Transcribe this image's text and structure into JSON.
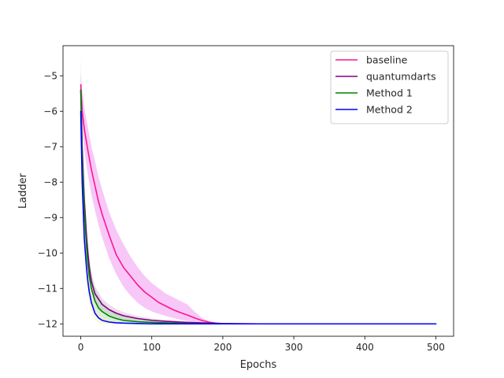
{
  "chart_data": {
    "type": "line",
    "title": "",
    "xlabel": "Epochs",
    "ylabel": "Ladder",
    "xlim": [
      -25,
      525
    ],
    "ylim": [
      -12.35,
      -4.15
    ],
    "xticks": [
      0,
      100,
      200,
      300,
      400,
      500
    ],
    "yticks": [
      -12,
      -11,
      -10,
      -9,
      -8,
      -7,
      -6,
      -5
    ],
    "xtick_labels": [
      "0",
      "100",
      "200",
      "300",
      "400",
      "500"
    ],
    "ytick_labels": [
      "−12",
      "−11",
      "−10",
      "−9",
      "−8",
      "−7",
      "−6",
      "−5"
    ],
    "grid": false,
    "legend_position": "top-right",
    "series": [
      {
        "name": "baseline",
        "color": "#ff1493",
        "band_color": "#ee82ee",
        "x": [
          0,
          2,
          5,
          10,
          15,
          20,
          25,
          30,
          40,
          50,
          60,
          70,
          80,
          90,
          100,
          110,
          120,
          130,
          140,
          150,
          160,
          170,
          180,
          190,
          200,
          220,
          250,
          300,
          400,
          500
        ],
        "y": [
          -5.25,
          -6.0,
          -6.5,
          -7.1,
          -7.65,
          -8.1,
          -8.55,
          -8.9,
          -9.5,
          -10.05,
          -10.4,
          -10.65,
          -10.9,
          -11.1,
          -11.25,
          -11.4,
          -11.5,
          -11.6,
          -11.68,
          -11.75,
          -11.83,
          -11.9,
          -11.95,
          -11.98,
          -12.0,
          -12.0,
          -12.0,
          -12.0,
          -12.0,
          -12.0
        ],
        "lower": [
          -5.6,
          -6.5,
          -7.1,
          -7.8,
          -8.35,
          -8.8,
          -9.2,
          -9.55,
          -10.15,
          -10.6,
          -10.95,
          -11.2,
          -11.4,
          -11.55,
          -11.65,
          -11.72,
          -11.78,
          -11.83,
          -11.88,
          -11.92,
          -11.95,
          -11.97,
          -11.99,
          -12.0,
          -12.0,
          -12.0,
          -12.0,
          -12.0,
          -12.0,
          -12.0
        ],
        "upper": [
          -4.9,
          -5.4,
          -5.9,
          -6.45,
          -7.0,
          -7.4,
          -7.85,
          -8.2,
          -8.85,
          -9.35,
          -9.75,
          -10.1,
          -10.4,
          -10.65,
          -10.85,
          -11.0,
          -11.15,
          -11.25,
          -11.35,
          -11.45,
          -11.65,
          -11.82,
          -11.92,
          -11.97,
          -12.0,
          -12.0,
          -12.0,
          -12.0,
          -12.0,
          -12.0
        ]
      },
      {
        "name": "quantumdarts",
        "color": "#800080",
        "band_color": "#d8b0d8",
        "x": [
          0,
          2,
          5,
          8,
          10,
          12,
          15,
          20,
          25,
          30,
          40,
          50,
          60,
          80,
          100,
          120,
          150,
          200,
          250,
          300,
          400,
          500
        ],
        "y": [
          -5.4,
          -7.0,
          -8.5,
          -9.5,
          -10.0,
          -10.4,
          -10.8,
          -11.15,
          -11.3,
          -11.45,
          -11.6,
          -11.7,
          -11.77,
          -11.85,
          -11.9,
          -11.93,
          -11.96,
          -11.99,
          -12.0,
          -12.0,
          -12.0,
          -12.0
        ],
        "lower": [
          -5.6,
          -7.3,
          -8.8,
          -9.8,
          -10.3,
          -10.65,
          -11.0,
          -11.35,
          -11.5,
          -11.62,
          -11.74,
          -11.82,
          -11.87,
          -11.92,
          -11.95,
          -11.97,
          -11.98,
          -12.0,
          -12.0,
          -12.0,
          -12.0,
          -12.0
        ],
        "upper": [
          -5.2,
          -6.7,
          -8.2,
          -9.2,
          -9.7,
          -10.15,
          -10.6,
          -10.95,
          -11.1,
          -11.28,
          -11.46,
          -11.58,
          -11.67,
          -11.78,
          -11.85,
          -11.89,
          -11.94,
          -11.98,
          -12.0,
          -12.0,
          -12.0,
          -12.0
        ]
      },
      {
        "name": "Method 1",
        "color": "#008000",
        "band_color": "#a8dca8",
        "x": [
          0,
          2,
          5,
          8,
          10,
          12,
          15,
          20,
          25,
          30,
          40,
          50,
          60,
          80,
          100,
          150,
          200,
          300,
          400,
          500
        ],
        "y": [
          -5.4,
          -7.2,
          -8.8,
          -9.8,
          -10.3,
          -10.65,
          -11.0,
          -11.35,
          -11.55,
          -11.65,
          -11.78,
          -11.85,
          -11.9,
          -11.94,
          -11.96,
          -11.99,
          -12.0,
          -12.0,
          -12.0,
          -12.0
        ],
        "lower": [
          -5.9,
          -7.8,
          -9.4,
          -10.3,
          -10.7,
          -11.0,
          -11.35,
          -11.65,
          -11.8,
          -11.87,
          -11.93,
          -11.96,
          -11.98,
          -11.99,
          -12.0,
          -12.0,
          -12.0,
          -12.0,
          -12.0,
          -12.0
        ],
        "upper": [
          -4.45,
          -6.5,
          -8.1,
          -9.1,
          -9.7,
          -10.1,
          -10.55,
          -10.95,
          -11.2,
          -11.38,
          -11.58,
          -11.7,
          -11.78,
          -11.86,
          -11.9,
          -11.96,
          -11.99,
          -12.0,
          -12.0,
          -12.0
        ]
      },
      {
        "name": "Method 2",
        "color": "#0000ff",
        "band_color": "#f5f0b8",
        "x": [
          0,
          2,
          5,
          8,
          10,
          12,
          15,
          20,
          25,
          30,
          40,
          50,
          60,
          80,
          100,
          150,
          200,
          300,
          400,
          500
        ],
        "y": [
          -6.0,
          -8.0,
          -9.6,
          -10.4,
          -10.8,
          -11.1,
          -11.4,
          -11.7,
          -11.83,
          -11.9,
          -11.95,
          -11.97,
          -11.98,
          -11.99,
          -12.0,
          -12.0,
          -12.0,
          -12.0,
          -12.0,
          -12.0
        ],
        "lower": [
          -6.3,
          -8.4,
          -10.0,
          -10.8,
          -11.2,
          -11.45,
          -11.7,
          -11.9,
          -11.98,
          -12.0,
          -12.0,
          -12.0,
          -12.0,
          -12.0,
          -12.0,
          -12.0,
          -12.0,
          -12.0,
          -12.0,
          -12.0
        ],
        "upper": [
          -5.7,
          -7.6,
          -9.2,
          -10.0,
          -10.4,
          -10.75,
          -11.1,
          -11.5,
          -11.68,
          -11.78,
          -11.88,
          -11.93,
          -11.96,
          -11.98,
          -11.99,
          -12.0,
          -12.0,
          -12.0,
          -12.0,
          -12.0
        ]
      }
    ]
  }
}
